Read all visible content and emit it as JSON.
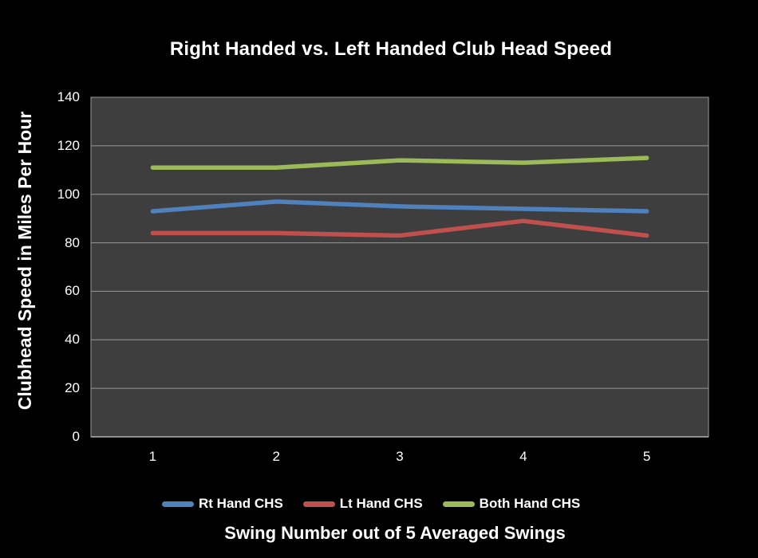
{
  "chart_data": {
    "type": "line",
    "title": "Right Handed vs. Left Handed Club Head Speed",
    "xlabel": "Swing Number out of 5 Averaged Swings",
    "ylabel": "Clubhead Speed in Miles Per Hour",
    "categories": [
      "1",
      "2",
      "3",
      "4",
      "5"
    ],
    "yticks": [
      0,
      20,
      40,
      60,
      80,
      100,
      120,
      140
    ],
    "ylim": [
      0,
      140
    ],
    "grid": "horizontal",
    "legend_position": "bottom",
    "series": [
      {
        "name": "Rt Hand CHS",
        "color": "#4F81BD",
        "values": [
          93,
          97,
          95,
          94,
          93
        ]
      },
      {
        "name": "Lt Hand CHS",
        "color": "#C0504D",
        "values": [
          84,
          84,
          83,
          89,
          83
        ]
      },
      {
        "name": "Both Hand CHS",
        "color": "#9BBB59",
        "values": [
          111,
          111,
          114,
          113,
          115
        ]
      }
    ],
    "colors": {
      "background": "#000000",
      "plot_background": "#3E3E3E",
      "gridline": "#999999",
      "axis_line": "#B3B3B3",
      "text": "#FFFFFF"
    }
  }
}
